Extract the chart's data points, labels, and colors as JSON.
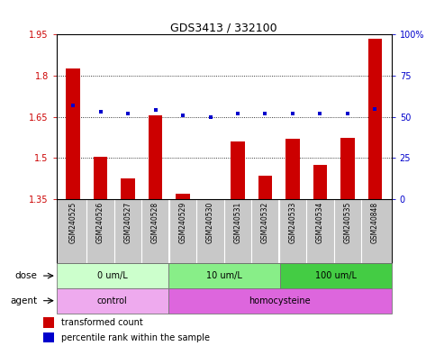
{
  "title": "GDS3413 / 332100",
  "samples": [
    "GSM240525",
    "GSM240526",
    "GSM240527",
    "GSM240528",
    "GSM240529",
    "GSM240530",
    "GSM240531",
    "GSM240532",
    "GSM240533",
    "GSM240534",
    "GSM240535",
    "GSM240848"
  ],
  "transformed_count": [
    1.825,
    1.505,
    1.425,
    1.655,
    1.37,
    1.345,
    1.56,
    1.435,
    1.57,
    1.475,
    1.575,
    1.935
  ],
  "percentile_rank": [
    57,
    53,
    52,
    54,
    51,
    50,
    52,
    52,
    52,
    52,
    52,
    55
  ],
  "ylim_left": [
    1.35,
    1.95
  ],
  "ylim_right": [
    0,
    100
  ],
  "yticks_left": [
    1.35,
    1.5,
    1.65,
    1.8,
    1.95
  ],
  "yticks_right": [
    0,
    25,
    50,
    75,
    100
  ],
  "ytick_labels_left": [
    "1.35",
    "1.5",
    "1.65",
    "1.8",
    "1.95"
  ],
  "ytick_labels_right": [
    "0",
    "25",
    "50",
    "75",
    "100%"
  ],
  "bar_color": "#cc0000",
  "dot_color": "#0000cc",
  "hgrid_values": [
    1.5,
    1.65,
    1.8
  ],
  "dose_groups": [
    {
      "label": "0 um/L",
      "start": 0,
      "end": 4,
      "color": "#ccffcc"
    },
    {
      "label": "10 um/L",
      "start": 4,
      "end": 8,
      "color": "#88ee88"
    },
    {
      "label": "100 um/L",
      "start": 8,
      "end": 12,
      "color": "#44cc44"
    }
  ],
  "agent_groups": [
    {
      "label": "control",
      "start": 0,
      "end": 4,
      "color": "#eeaaee"
    },
    {
      "label": "homocysteine",
      "start": 4,
      "end": 12,
      "color": "#dd77dd"
    }
  ],
  "dose_label": "dose",
  "agent_label": "agent",
  "legend_bar_label": "transformed count",
  "legend_dot_label": "percentile rank within the sample",
  "bar_width": 0.5,
  "sample_bg": "#c8c8c8",
  "fig_bg": "#ffffff"
}
